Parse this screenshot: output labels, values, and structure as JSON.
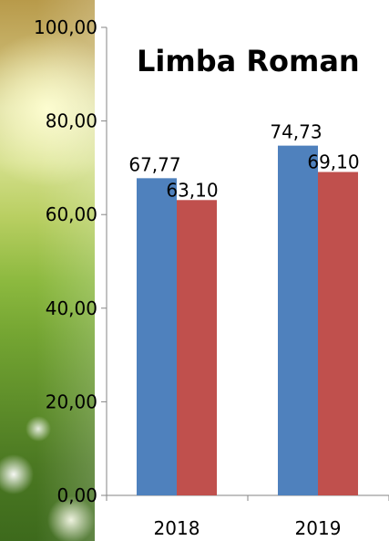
{
  "chart_data": {
    "type": "bar",
    "title": "Limba Roman",
    "xlabel": "",
    "ylabel": "",
    "categories": [
      "2018",
      "2019"
    ],
    "series": [
      {
        "color": "#4f81bd",
        "values": [
          67.77,
          74.73
        ],
        "labels": [
          "67,77",
          "74,73"
        ]
      },
      {
        "color": "#c0504d",
        "values": [
          63.1,
          69.1
        ],
        "labels": [
          "63,10",
          "69,10"
        ]
      }
    ],
    "ylim": [
      0,
      100
    ],
    "yticks": [
      0,
      20,
      40,
      60,
      80,
      100
    ],
    "ytick_labels": [
      "0,00",
      "20,00",
      "40,00",
      "60,00",
      "80,00",
      "100,00"
    ],
    "grid": false,
    "legend": "none"
  }
}
